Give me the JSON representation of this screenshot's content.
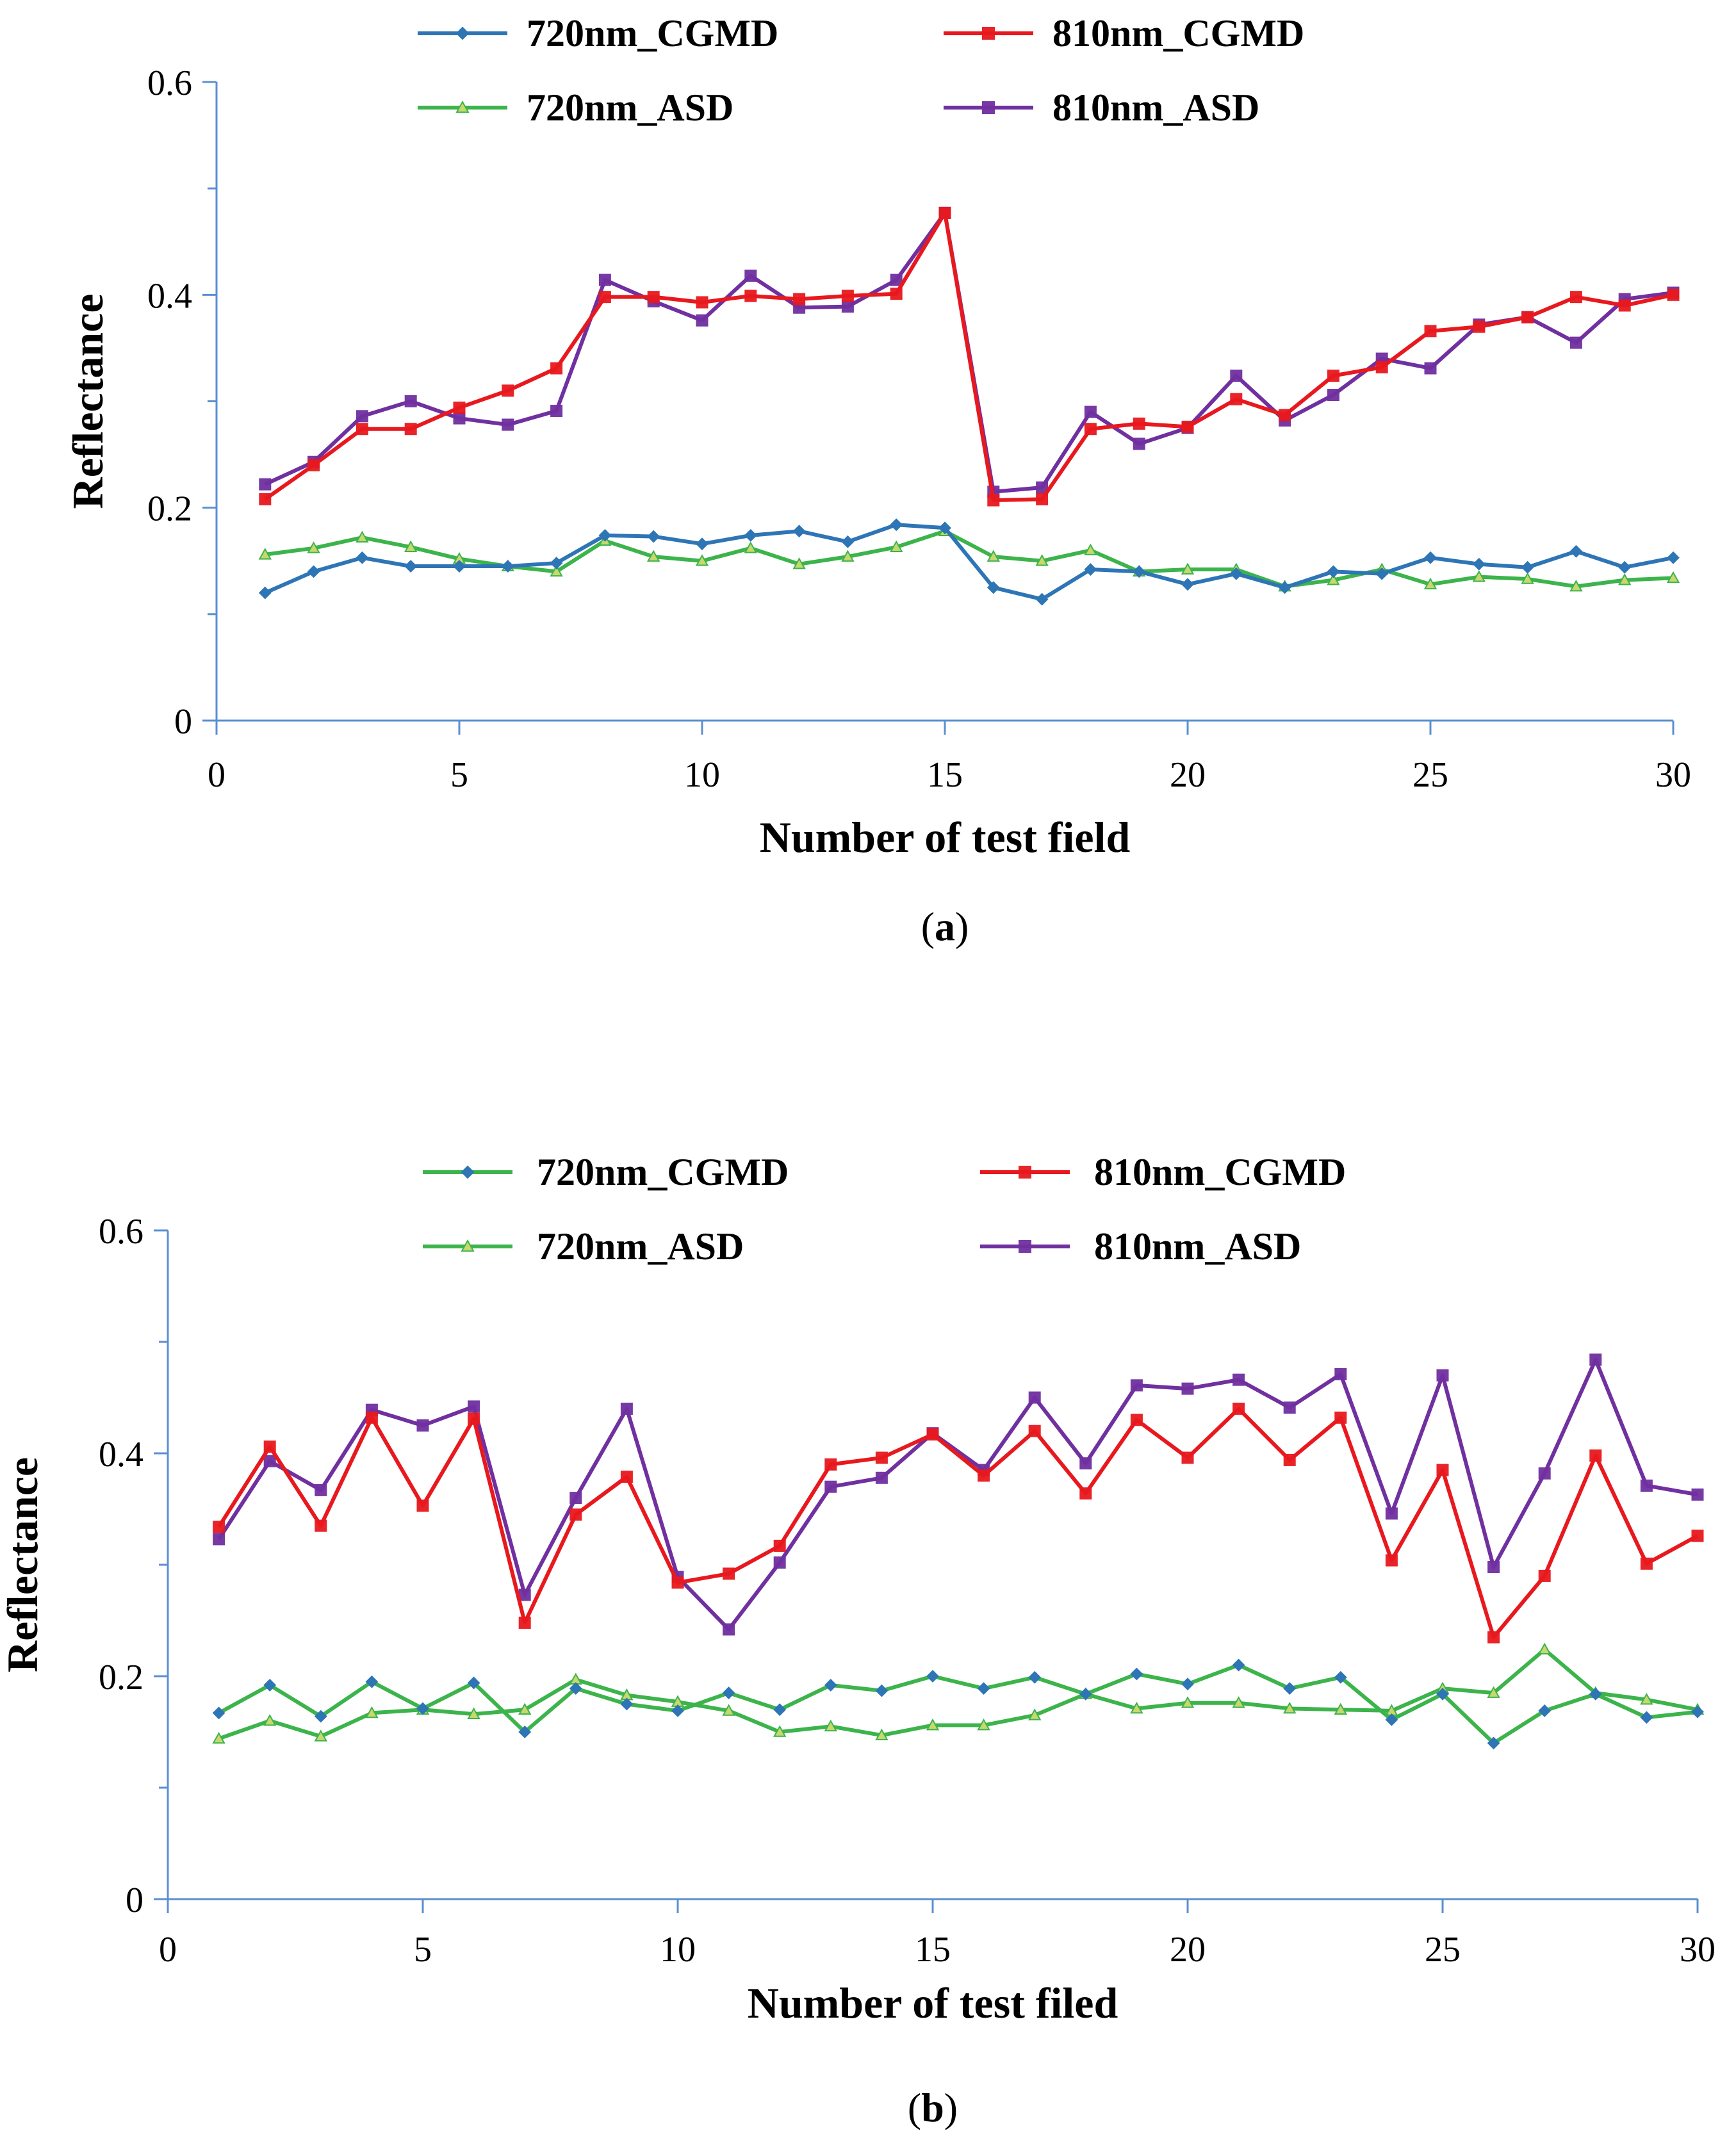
{
  "chart_data": [
    {
      "type": "line",
      "caption": "a",
      "title": "",
      "xlabel": "Number of test field",
      "ylabel": "Reflectance",
      "xlim": [
        0,
        30
      ],
      "ylim": [
        0,
        0.6
      ],
      "xticks": [
        "0",
        "5",
        "10",
        "15",
        "20",
        "25",
        "30"
      ],
      "yticks": [
        "0",
        "0.2",
        "0.4",
        "0.6"
      ],
      "grid": false,
      "legend_position": "top",
      "x": [
        1,
        2,
        3,
        4,
        5,
        6,
        7,
        8,
        9,
        10,
        11,
        12,
        13,
        14,
        15,
        16,
        17,
        18,
        19,
        20,
        21,
        22,
        23,
        24,
        25,
        26,
        27,
        28,
        29,
        30
      ],
      "series": [
        {
          "name": "720nm_CGMD",
          "color": "#2E75B6",
          "marker": "diamond",
          "values": [
            0.12,
            0.14,
            0.153,
            0.145,
            0.145,
            0.145,
            0.148,
            0.174,
            0.173,
            0.166,
            0.174,
            0.178,
            0.168,
            0.184,
            0.181,
            0.125,
            0.114,
            0.142,
            0.14,
            0.128,
            0.138,
            0.125,
            0.14,
            0.138,
            0.153,
            0.147,
            0.144,
            0.159,
            0.144,
            0.153
          ]
        },
        {
          "name": "810nm_CGMD",
          "color": "#E8191E",
          "marker": "square",
          "values": [
            0.208,
            0.24,
            0.274,
            0.274,
            0.294,
            0.31,
            0.331,
            0.398,
            0.398,
            0.393,
            0.399,
            0.396,
            0.399,
            0.401,
            0.477,
            0.207,
            0.208,
            0.274,
            0.279,
            0.276,
            0.302,
            0.287,
            0.324,
            0.332,
            0.366,
            0.37,
            0.379,
            0.398,
            0.39,
            0.4
          ]
        },
        {
          "name": "720nm_ASD",
          "color": "#3CB44B",
          "marker": "triangle",
          "values": [
            0.156,
            0.162,
            0.172,
            0.163,
            0.152,
            0.145,
            0.14,
            0.169,
            0.154,
            0.15,
            0.162,
            0.147,
            0.154,
            0.163,
            0.178,
            0.154,
            0.15,
            0.16,
            0.14,
            0.142,
            0.142,
            0.126,
            0.132,
            0.142,
            0.128,
            0.135,
            0.133,
            0.126,
            0.132,
            0.134
          ]
        },
        {
          "name": "810nm_ASD",
          "color": "#7030A0",
          "marker": "square",
          "values": [
            0.222,
            0.243,
            0.286,
            0.3,
            0.284,
            0.278,
            0.291,
            0.414,
            0.394,
            0.376,
            0.418,
            0.388,
            0.389,
            0.414,
            0.477,
            0.215,
            0.219,
            0.29,
            0.26,
            0.275,
            0.324,
            0.282,
            0.306,
            0.34,
            0.331,
            0.372,
            0.379,
            0.355,
            0.396,
            0.402
          ]
        }
      ]
    },
    {
      "type": "line",
      "caption": "b",
      "title": "",
      "xlabel": "Number of test filed",
      "ylabel": "Reflectance",
      "xlim": [
        0,
        30
      ],
      "ylim": [
        0,
        0.6
      ],
      "xticks": [
        "0",
        "5",
        "10",
        "15",
        "20",
        "25",
        "30"
      ],
      "yticks": [
        "0",
        "0.2",
        "0.4",
        "0.6"
      ],
      "grid": false,
      "legend_position": "top",
      "x": [
        1,
        2,
        3,
        4,
        5,
        6,
        7,
        8,
        9,
        10,
        11,
        12,
        13,
        14,
        15,
        16,
        17,
        18,
        19,
        20,
        21,
        22,
        23,
        24,
        25,
        26,
        27,
        28,
        29,
        30
      ],
      "series": [
        {
          "name": "720nm_CGMD",
          "color": "#3CB44B",
          "marker": "diamond",
          "marker_color": "#2E75B6",
          "values": [
            0.167,
            0.192,
            0.164,
            0.195,
            0.171,
            0.194,
            0.15,
            0.189,
            0.175,
            0.169,
            0.185,
            0.17,
            0.192,
            0.187,
            0.2,
            0.189,
            0.199,
            0.184,
            0.202,
            0.193,
            0.21,
            0.189,
            0.199,
            0.161,
            0.184,
            0.14,
            0.169,
            0.184,
            0.163,
            0.168
          ]
        },
        {
          "name": "810nm_CGMD",
          "color": "#E8191E",
          "marker": "square",
          "values": [
            0.334,
            0.406,
            0.335,
            0.432,
            0.353,
            0.431,
            0.248,
            0.345,
            0.379,
            0.284,
            0.292,
            0.317,
            0.39,
            0.396,
            0.417,
            0.38,
            0.42,
            0.364,
            0.43,
            0.396,
            0.44,
            0.394,
            0.432,
            0.304,
            0.385,
            0.235,
            0.29,
            0.398,
            0.301,
            0.326
          ]
        },
        {
          "name": "720nm_ASD",
          "color": "#3CB44B",
          "marker": "triangle",
          "values": [
            0.144,
            0.16,
            0.146,
            0.167,
            0.17,
            0.166,
            0.17,
            0.197,
            0.183,
            0.177,
            0.169,
            0.15,
            0.155,
            0.147,
            0.156,
            0.156,
            0.165,
            0.184,
            0.171,
            0.176,
            0.176,
            0.171,
            0.17,
            0.169,
            0.189,
            0.185,
            0.224,
            0.185,
            0.179,
            0.17
          ]
        },
        {
          "name": "810nm_ASD",
          "color": "#7030A0",
          "marker": "square",
          "values": [
            0.323,
            0.393,
            0.367,
            0.439,
            0.425,
            0.442,
            0.273,
            0.36,
            0.44,
            0.289,
            0.242,
            0.302,
            0.37,
            0.378,
            0.418,
            0.385,
            0.45,
            0.391,
            0.461,
            0.458,
            0.466,
            0.441,
            0.471,
            0.346,
            0.47,
            0.298,
            0.382,
            0.484,
            0.371,
            0.363
          ]
        }
      ]
    }
  ]
}
